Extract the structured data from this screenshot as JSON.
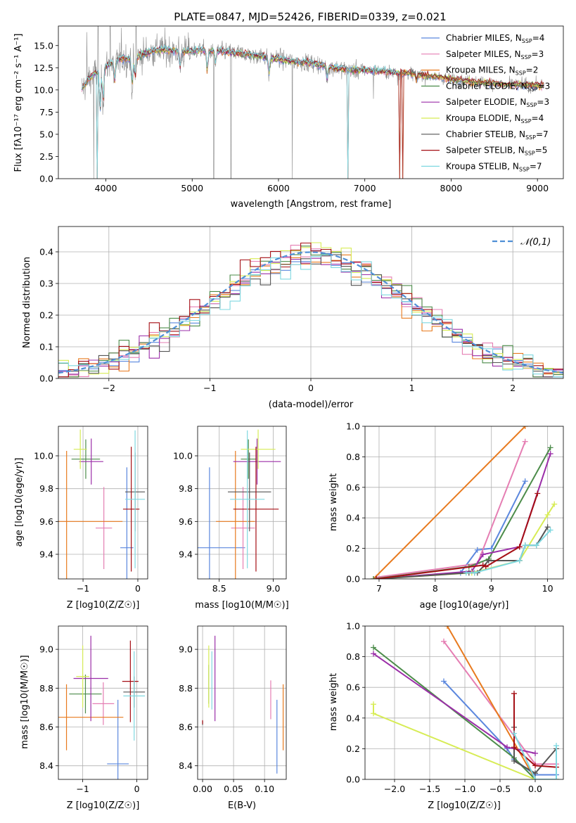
{
  "figure": {
    "title": "PLATE=0847, MJD=52426, FIBERID=0339, z=0.021"
  },
  "models": [
    {
      "name": "Chabrier MILES",
      "nssp": "4",
      "color": "#5b87de"
    },
    {
      "name": "Salpeter MILES",
      "nssp": "3",
      "color": "#e57eb3"
    },
    {
      "name": "Kroupa MILES",
      "nssp": "2",
      "color": "#e87a1e"
    },
    {
      "name": "Chabrier ELODIE",
      "nssp": "3",
      "color": "#4c8c4a"
    },
    {
      "name": "Salpeter ELODIE",
      "nssp": "3",
      "color": "#9b2ea8"
    },
    {
      "name": "Kroupa ELODIE",
      "nssp": "4",
      "color": "#d7ec55"
    },
    {
      "name": "Chabrier STELIB",
      "nssp": "7",
      "color": "#555555"
    },
    {
      "name": "Salpeter STELIB",
      "nssp": "5",
      "color": "#a50f15"
    },
    {
      "name": "Kroupa STELIB",
      "nssp": "7",
      "color": "#7fd8e0"
    }
  ],
  "chart_data": [
    {
      "id": "spectrum",
      "type": "line",
      "xlabel": "wavelength [Angstrom, rest frame]",
      "ylabel": "Flux [fλ10⁻¹⁷ erg cm⁻² s⁻¹ A⁻¹]",
      "xlim": [
        3450,
        9300
      ],
      "ylim": [
        0,
        17.2
      ],
      "xticks": [
        4000,
        5000,
        6000,
        7000,
        8000,
        9000
      ],
      "yticks": [
        0.0,
        2.5,
        5.0,
        7.5,
        10.0,
        12.5,
        15.0
      ],
      "legend_position": "top-right",
      "grid": false,
      "continuum": [
        [
          3700,
          9.8
        ],
        [
          3800,
          11.2
        ],
        [
          3900,
          12.0
        ],
        [
          4000,
          12.6
        ],
        [
          4100,
          13.2
        ],
        [
          4200,
          13.6
        ],
        [
          4300,
          13.4
        ],
        [
          4400,
          13.9
        ],
        [
          4500,
          14.3
        ],
        [
          4600,
          14.5
        ],
        [
          4700,
          14.5
        ],
        [
          4800,
          14.4
        ],
        [
          4900,
          14.3
        ],
        [
          5000,
          14.4
        ],
        [
          5100,
          14.5
        ],
        [
          5200,
          14.4
        ],
        [
          5300,
          14.4
        ],
        [
          5400,
          14.3
        ],
        [
          5500,
          14.2
        ],
        [
          5600,
          14.1
        ],
        [
          5700,
          13.9
        ],
        [
          5800,
          13.8
        ],
        [
          5900,
          13.6
        ],
        [
          6000,
          13.5
        ],
        [
          6100,
          13.3
        ],
        [
          6200,
          13.2
        ],
        [
          6300,
          13.1
        ],
        [
          6400,
          13.0
        ],
        [
          6500,
          12.8
        ],
        [
          6600,
          12.6
        ],
        [
          6700,
          12.4
        ],
        [
          6800,
          12.3
        ],
        [
          6900,
          12.2
        ],
        [
          7000,
          12.2
        ],
        [
          7100,
          12.2
        ],
        [
          7200,
          12.1
        ],
        [
          7300,
          12.0
        ],
        [
          7400,
          11.9
        ],
        [
          7500,
          11.9
        ],
        [
          7600,
          11.8
        ],
        [
          7700,
          11.6
        ],
        [
          7800,
          11.5
        ],
        [
          7900,
          11.4
        ],
        [
          8000,
          11.2
        ],
        [
          8200,
          11.0
        ],
        [
          8400,
          10.8
        ],
        [
          8600,
          10.6
        ],
        [
          8800,
          10.6
        ],
        [
          9000,
          10.5
        ]
      ],
      "absorption": [
        [
          3934,
          4.8
        ],
        [
          3969,
          4.0
        ],
        [
          4102,
          2.5
        ],
        [
          4305,
          3.0
        ],
        [
          4340,
          2.5
        ],
        [
          4861,
          2.0
        ],
        [
          5175,
          2.5
        ],
        [
          5270,
          1.5
        ],
        [
          5890,
          2.2
        ],
        [
          6563,
          1.5
        ],
        [
          7600,
          0.8
        ]
      ],
      "data_spikes": [
        [
          3780,
          16.5
        ],
        [
          3860,
          0.0
        ],
        [
          3910,
          17.2
        ],
        [
          4050,
          17.2
        ],
        [
          4180,
          17.0
        ],
        [
          4350,
          17.2
        ],
        [
          5250,
          0.0
        ],
        [
          5450,
          0.0
        ],
        [
          6160,
          0.0
        ],
        [
          7100,
          9.0
        ],
        [
          7380,
          10.5
        ]
      ],
      "model_drops": [
        [
          7440,
          0.0
        ],
        [
          6800,
          0.0
        ],
        [
          3900,
          0.0
        ],
        [
          7400,
          0.0
        ]
      ]
    },
    {
      "id": "residuals",
      "type": "step",
      "xlabel": "(data-model)/error",
      "ylabel": "Normed distribution",
      "xlim": [
        -2.5,
        2.5
      ],
      "ylim": [
        0,
        0.48
      ],
      "xticks": [
        -2,
        -1,
        0,
        1,
        2
      ],
      "yticks": [
        0.0,
        0.1,
        0.2,
        0.3,
        0.4
      ],
      "bin_width": 0.1,
      "grid": true,
      "legend_position": "top-right",
      "reference_label": "𝒩(0,1)",
      "reference_color": "#4f8fd6"
    },
    {
      "id": "age-vs-Z",
      "type": "errorbar",
      "xlabel": "Z [log10(Z/Z☉)]",
      "ylabel": "age  [log10(age/yr)]",
      "xlim": [
        -1.45,
        0.18
      ],
      "ylim": [
        9.25,
        10.18
      ],
      "xticks": [
        -1,
        0
      ],
      "yticks": [
        9.4,
        9.6,
        9.8,
        10.0
      ],
      "grid": true,
      "points": [
        {
          "x": -0.2,
          "y": 9.44,
          "xerr": 0.12,
          "yerr": 0.49
        },
        {
          "x": -0.62,
          "y": 9.56,
          "xerr": 0.15,
          "yerr": 0.25
        },
        {
          "x": -1.3,
          "y": 9.6,
          "xerr": 1.02,
          "yerr": 0.43
        },
        {
          "x": -0.95,
          "y": 9.98,
          "xerr": 0.26,
          "yerr": 0.12
        },
        {
          "x": -0.85,
          "y": 9.965,
          "xerr": 0.22,
          "yerr": 0.14
        },
        {
          "x": -1.05,
          "y": 10.04,
          "xerr": 0.12,
          "yerr": 0.12
        },
        {
          "x": -0.05,
          "y": 9.78,
          "xerr": 0.18,
          "yerr": 0.24
        },
        {
          "x": -0.12,
          "y": 9.675,
          "xerr": 0.15,
          "yerr": 0.38
        },
        {
          "x": -0.05,
          "y": 9.735,
          "xerr": 0.18,
          "yerr": 0.42
        }
      ]
    },
    {
      "id": "age-vs-mass",
      "type": "errorbar",
      "xlabel": "mass [log10(M/M☉)]",
      "ylabel": "",
      "xlim": [
        8.3,
        9.12
      ],
      "ylim": [
        9.25,
        10.18
      ],
      "xticks": [
        8.5,
        9.0
      ],
      "yticks": [
        9.4,
        9.6,
        9.8,
        10.0
      ],
      "grid": true,
      "points": [
        {
          "x": 8.41,
          "y": 9.44,
          "xerr": 0.33,
          "yerr": 0.49
        },
        {
          "x": 8.72,
          "y": 9.56,
          "xerr": 0.11,
          "yerr": 0.25
        },
        {
          "x": 8.65,
          "y": 9.6,
          "xerr": 0.18,
          "yerr": 0.43
        },
        {
          "x": 8.77,
          "y": 9.98,
          "xerr": 0.07,
          "yerr": 0.12
        },
        {
          "x": 8.85,
          "y": 9.965,
          "xerr": 0.22,
          "yerr": 0.14
        },
        {
          "x": 8.86,
          "y": 10.04,
          "xerr": 0.16,
          "yerr": 0.12
        },
        {
          "x": 8.78,
          "y": 9.78,
          "xerr": 0.2,
          "yerr": 0.24
        },
        {
          "x": 8.84,
          "y": 9.675,
          "xerr": 0.21,
          "yerr": 0.38
        },
        {
          "x": 8.76,
          "y": 9.735,
          "xerr": 0.16,
          "yerr": 0.42
        }
      ]
    },
    {
      "id": "weight-vs-age",
      "type": "line",
      "xlabel": "age  [log10(age/yr)]",
      "ylabel": "mass weight",
      "xlim": [
        6.75,
        10.28
      ],
      "ylim": [
        0.0,
        1.0
      ],
      "xticks": [
        7,
        8,
        9,
        10
      ],
      "yticks": [
        0.0,
        0.2,
        0.4,
        0.6,
        0.8,
        1.0
      ],
      "grid": true,
      "series": [
        {
          "x": [
            8.45,
            8.75,
            9.0,
            9.6
          ],
          "y": [
            0.04,
            0.19,
            0.2,
            0.64
          ]
        },
        {
          "x": [
            6.95,
            8.75,
            9.6
          ],
          "y": [
            0.01,
            0.1,
            0.9
          ]
        },
        {
          "x": [
            6.9,
            9.6
          ],
          "y": [
            0.0,
            1.0
          ]
        },
        {
          "x": [
            6.9,
            8.6,
            8.95,
            10.05
          ],
          "y": [
            0.0,
            0.08,
            0.13,
            0.86
          ]
        },
        {
          "x": [
            6.95,
            8.65,
            8.85,
            9.5,
            10.05
          ],
          "y": [
            0.0,
            0.05,
            0.16,
            0.21,
            0.82
          ]
        },
        {
          "x": [
            6.95,
            8.65,
            9.5,
            10.0,
            10.12
          ],
          "y": [
            0.0,
            0.04,
            0.12,
            0.42,
            0.49
          ]
        },
        {
          "x": [
            6.95,
            8.6,
            8.7,
            8.75,
            8.95,
            9.5,
            9.6,
            9.8,
            10.0
          ],
          "y": [
            0.0,
            0.04,
            0.04,
            0.04,
            0.12,
            0.12,
            0.22,
            0.22,
            0.34
          ]
        },
        {
          "x": [
            6.95,
            8.85,
            8.9,
            9.5,
            9.82
          ],
          "y": [
            0.0,
            0.09,
            0.08,
            0.21,
            0.56
          ]
        },
        {
          "x": [
            8.55,
            8.7,
            9.5,
            9.6,
            9.8,
            10.05
          ],
          "y": [
            0.04,
            0.04,
            0.12,
            0.22,
            0.22,
            0.32
          ]
        }
      ]
    },
    {
      "id": "mass-vs-Z",
      "type": "errorbar",
      "xlabel": "Z [log10(Z/Z☉)]",
      "ylabel": "mass [log10(M/M☉)]",
      "xlim": [
        -1.45,
        0.2
      ],
      "ylim": [
        8.33,
        9.12
      ],
      "xticks": [
        -1,
        0
      ],
      "yticks": [
        8.4,
        8.6,
        8.8,
        9.0
      ],
      "grid": true,
      "points": [
        {
          "x": -0.35,
          "y": 8.41,
          "xerr": 0.2,
          "yerr": 0.33
        },
        {
          "x": -0.62,
          "y": 8.72,
          "xerr": 0.2,
          "yerr": 0.11
        },
        {
          "x": -1.3,
          "y": 8.65,
          "xerr": 1.05,
          "yerr": 0.17
        },
        {
          "x": -0.95,
          "y": 8.77,
          "xerr": 0.3,
          "yerr": 0.1
        },
        {
          "x": -0.85,
          "y": 8.85,
          "xerr": 0.32,
          "yerr": 0.22
        },
        {
          "x": -1.0,
          "y": 8.86,
          "xerr": 0.12,
          "yerr": 0.16
        },
        {
          "x": -0.05,
          "y": 8.78,
          "xerr": 0.2,
          "yerr": 0.08
        },
        {
          "x": -0.12,
          "y": 8.835,
          "xerr": 0.15,
          "yerr": 0.21
        },
        {
          "x": -0.05,
          "y": 8.76,
          "xerr": 0.2,
          "yerr": 0.23
        }
      ]
    },
    {
      "id": "mass-vs-EBV",
      "type": "errorbar",
      "xlabel": "E(B-V)",
      "ylabel": "",
      "xlim": [
        -0.008,
        0.135
      ],
      "ylim": [
        8.33,
        9.12
      ],
      "xticks": [
        0.0,
        0.05,
        0.1
      ],
      "yticks": [
        8.4,
        8.6,
        8.8,
        9.0
      ],
      "grid": true,
      "points": [
        {
          "x": 0.12,
          "y": 8.55,
          "xerr": 0.0,
          "yerr": 0.19
        },
        {
          "x": 0.11,
          "y": 8.74,
          "xerr": 0.0,
          "yerr": 0.1
        },
        {
          "x": 0.13,
          "y": 8.65,
          "xerr": 0.0,
          "yerr": 0.17
        },
        {
          "x": 0.01,
          "y": 8.82,
          "xerr": 0.0,
          "yerr": 0.1
        },
        {
          "x": 0.02,
          "y": 8.85,
          "xerr": 0.0,
          "yerr": 0.22
        },
        {
          "x": 0.01,
          "y": 8.86,
          "xerr": 0.0,
          "yerr": 0.16
        },
        {
          "x": 0.0,
          "y": 8.62,
          "xerr": 0.0,
          "yerr": 0.01
        },
        {
          "x": 0.0,
          "y": 8.625,
          "xerr": 0.0,
          "yerr": 0.01
        },
        {
          "x": 0.015,
          "y": 8.84,
          "xerr": 0.0,
          "yerr": 0.15
        }
      ]
    },
    {
      "id": "weight-vs-Z",
      "type": "line",
      "xlabel": "Z [log10(Z/Z☉)]",
      "ylabel": "mass weight",
      "xlim": [
        -2.42,
        0.4
      ],
      "ylim": [
        0.0,
        1.0
      ],
      "xticks": [
        -2.0,
        -1.5,
        -1.0,
        -0.5,
        0.0
      ],
      "yticks": [
        0.0,
        0.2,
        0.4,
        0.6,
        0.8,
        1.0
      ],
      "grid": true,
      "series": [
        {
          "x": [
            -1.3,
            -0.4,
            -0.3,
            0.0,
            0.3
          ],
          "y": [
            0.64,
            0.2,
            0.13,
            0.03,
            0.03
          ]
        },
        {
          "x": [
            -1.3,
            0.0,
            0.3
          ],
          "y": [
            0.9,
            0.1,
            0.1
          ]
        },
        {
          "x": [
            -1.25,
            0.0
          ],
          "y": [
            1.0,
            0.0
          ]
        },
        {
          "x": [
            -2.3,
            -0.3,
            0.0,
            0.3
          ],
          "y": [
            0.86,
            0.14,
            0.0,
            0.0
          ]
        },
        {
          "x": [
            -2.3,
            -0.4,
            0.0
          ],
          "y": [
            0.82,
            0.21,
            0.17
          ]
        },
        {
          "x": [
            -2.3,
            -2.3,
            0.0,
            0.3
          ],
          "y": [
            0.49,
            0.43,
            0.0,
            0.0
          ]
        },
        {
          "x": [
            -0.3,
            -0.3,
            0.0,
            0.3
          ],
          "y": [
            0.34,
            0.12,
            0.04,
            0.2
          ]
        },
        {
          "x": [
            -0.3,
            -0.3,
            0.0,
            0.3
          ],
          "y": [
            0.56,
            0.21,
            0.09,
            0.08
          ]
        },
        {
          "x": [
            -0.3,
            0.0,
            0.3,
            0.3
          ],
          "y": [
            0.3,
            0.0,
            0.0,
            0.22
          ]
        }
      ]
    }
  ]
}
